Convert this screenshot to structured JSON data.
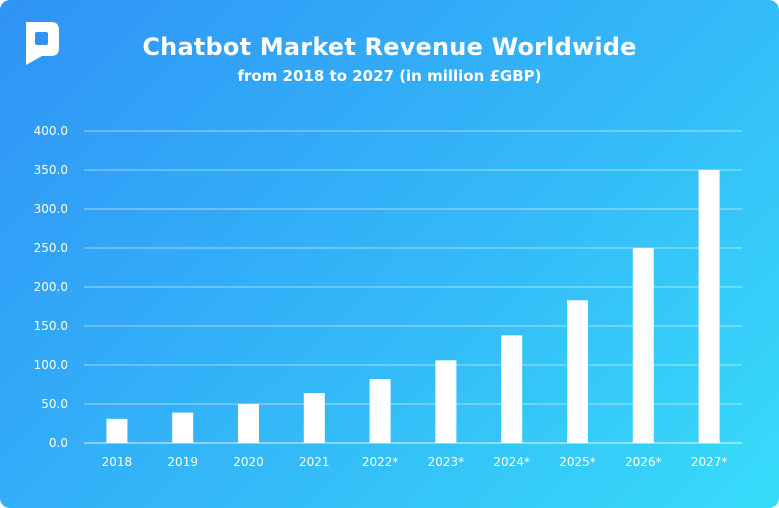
{
  "header": {
    "title": "Chatbot Market Revenue Worldwide",
    "subtitle": "from 2018 to 2027 (in million £GBP)"
  },
  "brand": {
    "logo_icon": "speech-bubble-logo-icon"
  },
  "colors": {
    "background_start": "#2f93f6",
    "background_end": "#37dcf9",
    "bar": "#ffffff",
    "grid": "#ffffff"
  },
  "chart_data": {
    "type": "bar",
    "title": "Chatbot Market Revenue Worldwide",
    "subtitle": "from 2018 to 2027 (in million £GBP)",
    "categories": [
      "2018",
      "2019",
      "2020",
      "2021",
      "2022*",
      "2023*",
      "2024*",
      "2025*",
      "2026*",
      "2027*"
    ],
    "values": [
      31,
      39,
      50,
      64,
      82,
      106,
      138,
      183,
      250,
      350
    ],
    "ylim": [
      0,
      400
    ],
    "yticks": [
      0,
      50,
      100,
      150,
      200,
      250,
      300,
      350,
      400
    ],
    "ytick_labels": [
      "0.0",
      "50.0",
      "100.0",
      "150.0",
      "200.0",
      "250.0",
      "300.0",
      "350.0",
      "400.0"
    ],
    "grid": true,
    "legend": "none",
    "xlabel": "",
    "ylabel": ""
  }
}
